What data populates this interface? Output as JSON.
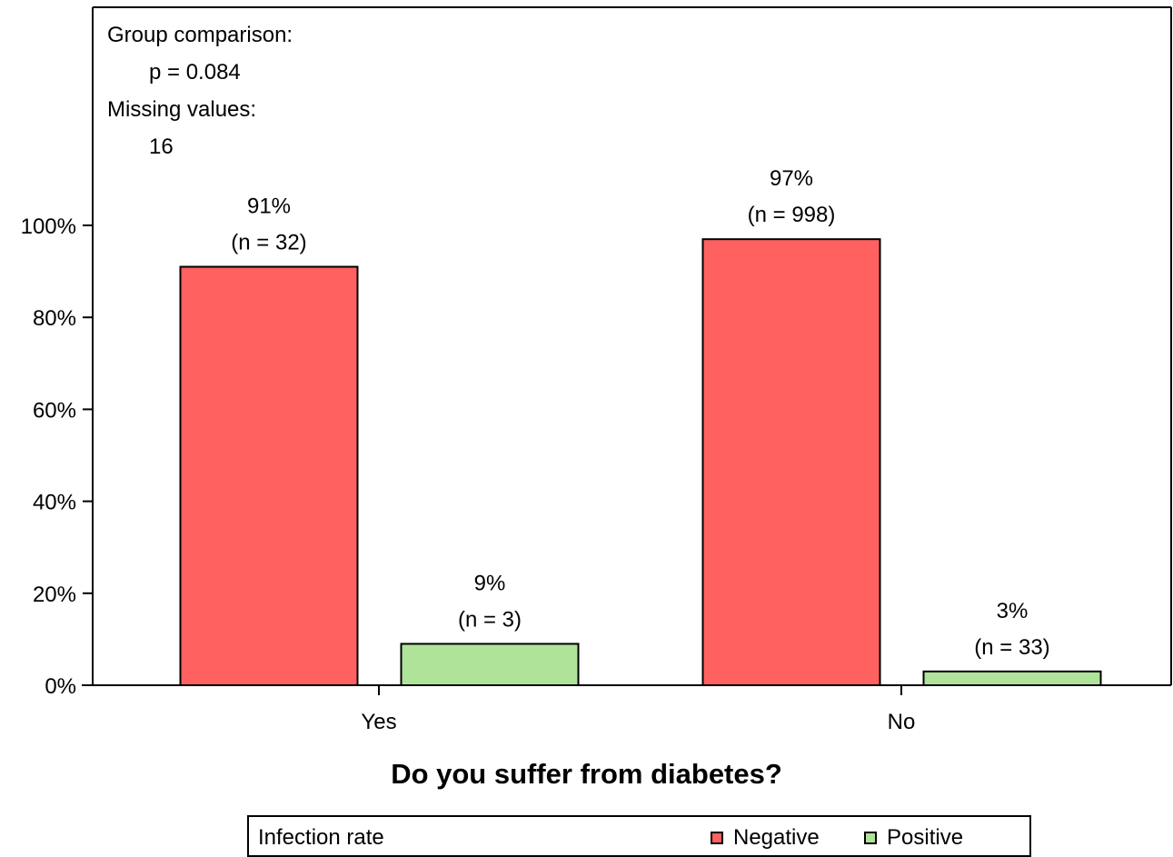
{
  "info": {
    "group_comparison_label": "Group comparison:",
    "p_value": "p = 0.084",
    "missing_label": "Missing values:",
    "missing_value": "16"
  },
  "chart_data": {
    "type": "bar",
    "categories": [
      "Yes",
      "No"
    ],
    "series": [
      {
        "name": "Negative",
        "color": "#ff6161",
        "values": [
          91,
          97
        ],
        "percent_labels": [
          "91%",
          "97%"
        ],
        "n_labels": [
          "(n = 32)",
          "(n = 998)"
        ]
      },
      {
        "name": "Positive",
        "color": "#b0e39a",
        "values": [
          9,
          3
        ],
        "percent_labels": [
          "9%",
          "3%"
        ],
        "n_labels": [
          "(n = 3)",
          "(n = 33)"
        ]
      }
    ],
    "ylim": [
      0,
      100
    ],
    "yticks": [
      0,
      20,
      40,
      60,
      80,
      100
    ],
    "ytick_labels": [
      "0%",
      "20%",
      "40%",
      "60%",
      "80%",
      "100%"
    ],
    "xlabel": "Do you suffer from diabetes?",
    "legend_title": "Infection rate",
    "legend_position": "bottom"
  }
}
